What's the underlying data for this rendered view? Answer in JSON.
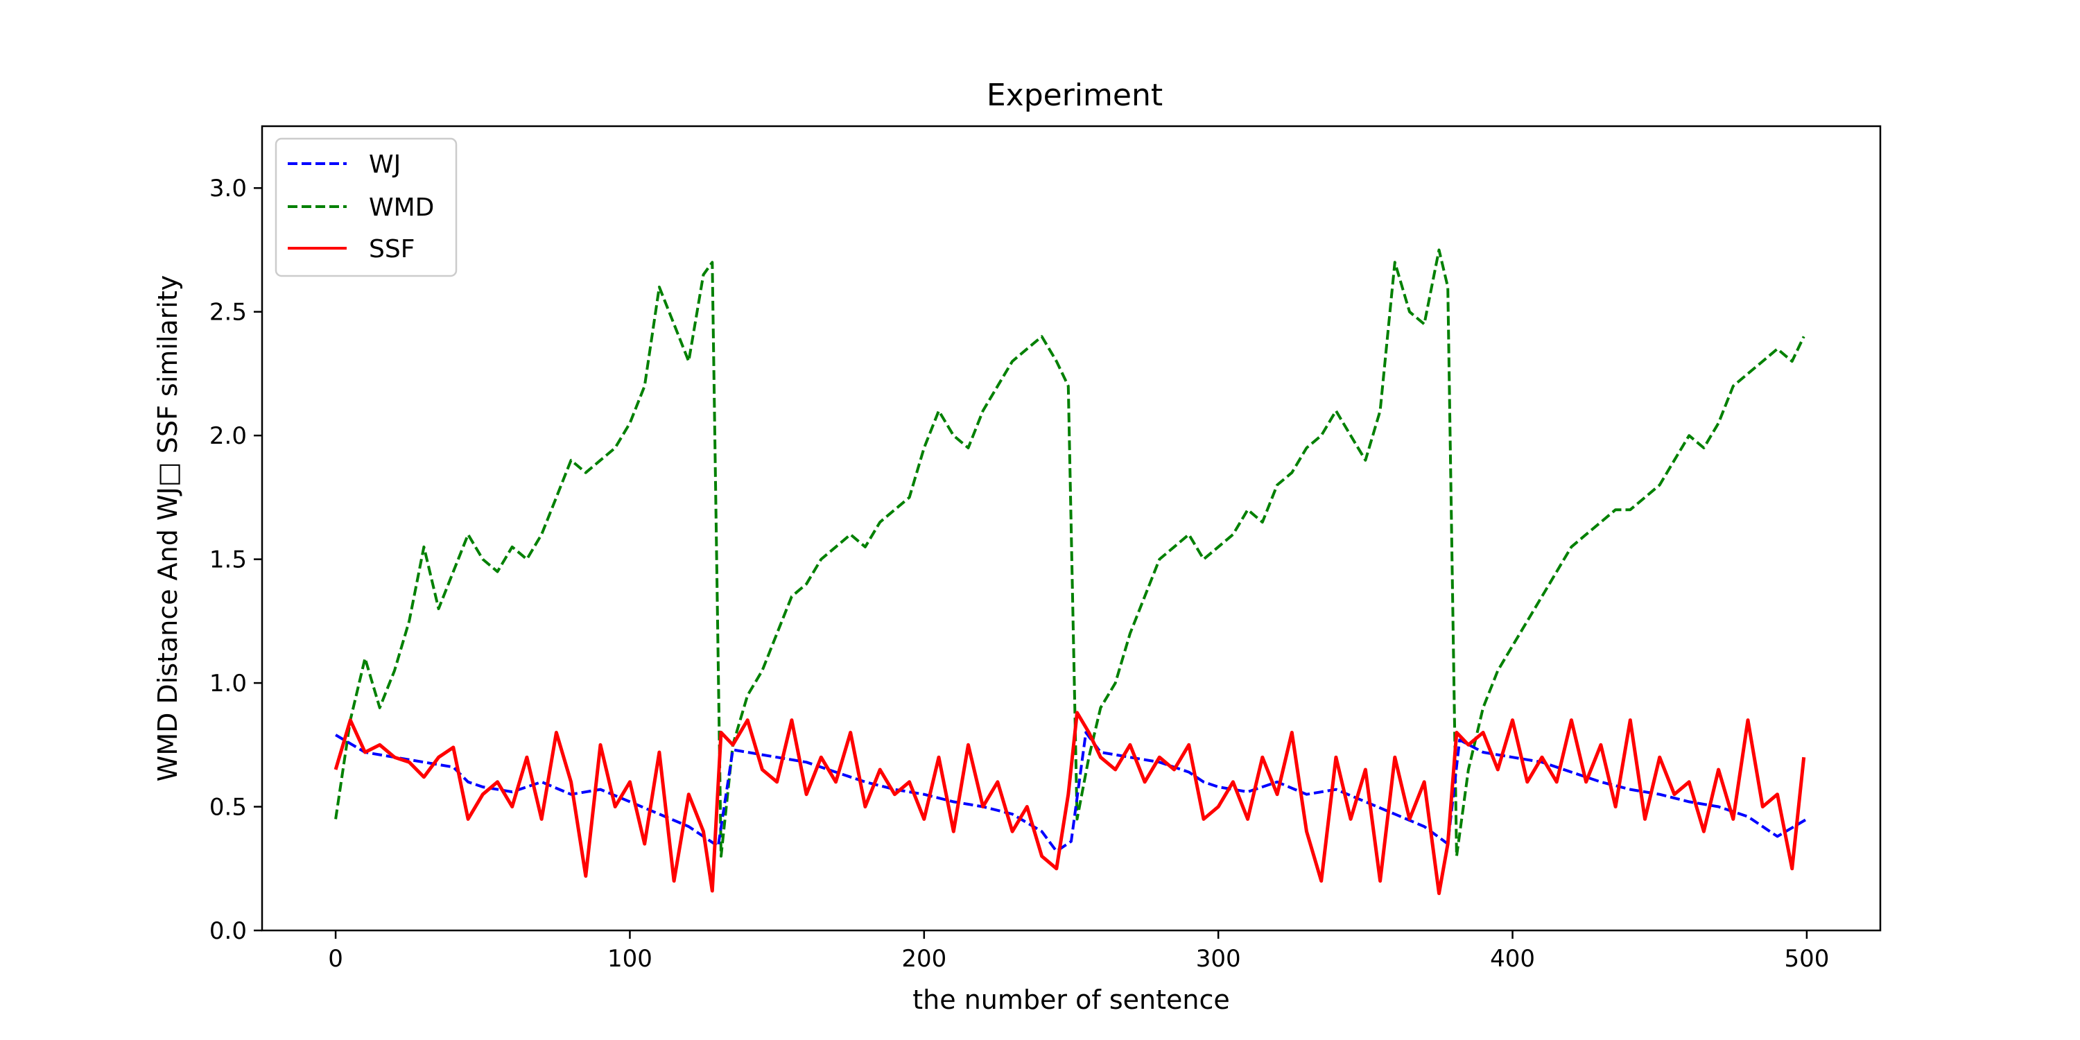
{
  "chart_data": {
    "type": "line",
    "title": "Experiment",
    "xlabel": "the number of sentence",
    "ylabel": "WMD Distance And WJ□ SSF similarity",
    "xlim": [
      -25,
      525
    ],
    "ylim": [
      0.0,
      3.25
    ],
    "xticks": [
      0,
      100,
      200,
      300,
      400,
      500
    ],
    "yticks": [
      0.0,
      0.5,
      1.0,
      1.5,
      2.0,
      2.5,
      3.0
    ],
    "xtick_labels": [
      "0",
      "100",
      "200",
      "300",
      "400",
      "500"
    ],
    "ytick_labels": [
      "0.0",
      "0.5",
      "1.0",
      "1.5",
      "2.0",
      "2.5",
      "3.0"
    ],
    "grid": false,
    "legend_position": "upper-left",
    "series": [
      {
        "name": "WJ",
        "color": "#0000ff",
        "style": "dashed",
        "x": [
          0,
          10,
          20,
          30,
          40,
          45,
          50,
          60,
          70,
          80,
          90,
          100,
          110,
          120,
          125,
          130,
          135,
          140,
          150,
          160,
          170,
          180,
          190,
          200,
          210,
          220,
          230,
          240,
          245,
          250,
          255,
          260,
          270,
          280,
          290,
          295,
          300,
          310,
          320,
          330,
          340,
          350,
          360,
          370,
          378,
          382,
          390,
          400,
          410,
          420,
          430,
          440,
          450,
          460,
          470,
          480,
          490,
          500
        ],
        "y": [
          0.79,
          0.72,
          0.7,
          0.68,
          0.66,
          0.6,
          0.58,
          0.56,
          0.6,
          0.55,
          0.57,
          0.52,
          0.47,
          0.42,
          0.38,
          0.34,
          0.73,
          0.72,
          0.7,
          0.68,
          0.64,
          0.6,
          0.57,
          0.55,
          0.52,
          0.5,
          0.47,
          0.4,
          0.32,
          0.36,
          0.8,
          0.72,
          0.7,
          0.68,
          0.64,
          0.6,
          0.58,
          0.56,
          0.6,
          0.55,
          0.57,
          0.52,
          0.47,
          0.42,
          0.35,
          0.77,
          0.72,
          0.7,
          0.68,
          0.64,
          0.6,
          0.57,
          0.55,
          0.52,
          0.5,
          0.46,
          0.38,
          0.45
        ]
      },
      {
        "name": "WMD",
        "color": "#008000",
        "style": "dashed",
        "x": [
          0,
          5,
          10,
          15,
          20,
          25,
          30,
          35,
          40,
          45,
          50,
          55,
          60,
          65,
          70,
          75,
          80,
          85,
          90,
          95,
          100,
          105,
          110,
          115,
          120,
          125,
          128,
          131,
          135,
          140,
          145,
          150,
          155,
          160,
          165,
          170,
          175,
          180,
          185,
          190,
          195,
          200,
          205,
          210,
          215,
          220,
          225,
          230,
          235,
          240,
          245,
          249,
          252,
          256,
          260,
          265,
          270,
          275,
          280,
          285,
          290,
          295,
          300,
          305,
          310,
          315,
          320,
          325,
          330,
          335,
          340,
          345,
          350,
          355,
          360,
          365,
          370,
          375,
          378,
          381,
          385,
          390,
          395,
          400,
          405,
          410,
          415,
          420,
          425,
          430,
          435,
          440,
          445,
          450,
          455,
          460,
          465,
          470,
          475,
          480,
          485,
          490,
          495,
          499
        ],
        "y": [
          0.45,
          0.85,
          1.1,
          0.9,
          1.05,
          1.25,
          1.55,
          1.3,
          1.45,
          1.6,
          1.5,
          1.45,
          1.55,
          1.5,
          1.6,
          1.75,
          1.9,
          1.85,
          1.9,
          1.95,
          2.05,
          2.2,
          2.6,
          2.45,
          2.3,
          2.65,
          2.7,
          0.3,
          0.75,
          0.95,
          1.05,
          1.2,
          1.35,
          1.4,
          1.5,
          1.55,
          1.6,
          1.55,
          1.65,
          1.7,
          1.75,
          1.95,
          2.1,
          2.0,
          1.95,
          2.1,
          2.2,
          2.3,
          2.35,
          2.4,
          2.3,
          2.2,
          0.45,
          0.7,
          0.9,
          1.0,
          1.2,
          1.35,
          1.5,
          1.55,
          1.6,
          1.5,
          1.55,
          1.6,
          1.7,
          1.65,
          1.8,
          1.85,
          1.95,
          2.0,
          2.1,
          2.0,
          1.9,
          2.1,
          2.7,
          2.5,
          2.45,
          2.75,
          2.6,
          0.3,
          0.65,
          0.9,
          1.05,
          1.15,
          1.25,
          1.35,
          1.45,
          1.55,
          1.6,
          1.65,
          1.7,
          1.7,
          1.75,
          1.8,
          1.9,
          2.0,
          1.95,
          2.05,
          2.2,
          2.25,
          2.3,
          2.35,
          2.3,
          2.4
        ]
      },
      {
        "name": "SSF",
        "color": "#ff0000",
        "style": "solid",
        "x": [
          0,
          5,
          10,
          15,
          20,
          25,
          30,
          35,
          40,
          45,
          50,
          55,
          60,
          65,
          70,
          75,
          80,
          85,
          90,
          95,
          100,
          105,
          110,
          115,
          120,
          125,
          128,
          131,
          135,
          140,
          145,
          150,
          155,
          160,
          165,
          170,
          175,
          180,
          185,
          190,
          195,
          200,
          205,
          210,
          215,
          220,
          225,
          230,
          235,
          240,
          245,
          249,
          252,
          256,
          260,
          265,
          270,
          275,
          280,
          285,
          290,
          295,
          300,
          305,
          310,
          315,
          320,
          325,
          330,
          335,
          340,
          345,
          350,
          355,
          360,
          365,
          370,
          375,
          378,
          381,
          385,
          390,
          395,
          400,
          405,
          410,
          415,
          420,
          425,
          430,
          435,
          440,
          445,
          450,
          455,
          460,
          465,
          470,
          475,
          480,
          485,
          490,
          495,
          499
        ],
        "y": [
          0.65,
          0.85,
          0.72,
          0.75,
          0.7,
          0.68,
          0.62,
          0.7,
          0.74,
          0.45,
          0.55,
          0.6,
          0.5,
          0.7,
          0.45,
          0.8,
          0.6,
          0.22,
          0.75,
          0.5,
          0.6,
          0.35,
          0.72,
          0.2,
          0.55,
          0.4,
          0.16,
          0.8,
          0.75,
          0.85,
          0.65,
          0.6,
          0.85,
          0.55,
          0.7,
          0.6,
          0.8,
          0.5,
          0.65,
          0.55,
          0.6,
          0.45,
          0.7,
          0.4,
          0.75,
          0.5,
          0.6,
          0.4,
          0.5,
          0.3,
          0.25,
          0.55,
          0.88,
          0.8,
          0.7,
          0.65,
          0.75,
          0.6,
          0.7,
          0.65,
          0.75,
          0.45,
          0.5,
          0.6,
          0.45,
          0.7,
          0.55,
          0.8,
          0.4,
          0.2,
          0.7,
          0.45,
          0.65,
          0.2,
          0.7,
          0.45,
          0.6,
          0.15,
          0.35,
          0.8,
          0.75,
          0.8,
          0.65,
          0.85,
          0.6,
          0.7,
          0.6,
          0.85,
          0.6,
          0.75,
          0.5,
          0.85,
          0.45,
          0.7,
          0.55,
          0.6,
          0.4,
          0.65,
          0.45,
          0.85,
          0.5,
          0.55,
          0.25,
          0.7
        ]
      }
    ]
  }
}
